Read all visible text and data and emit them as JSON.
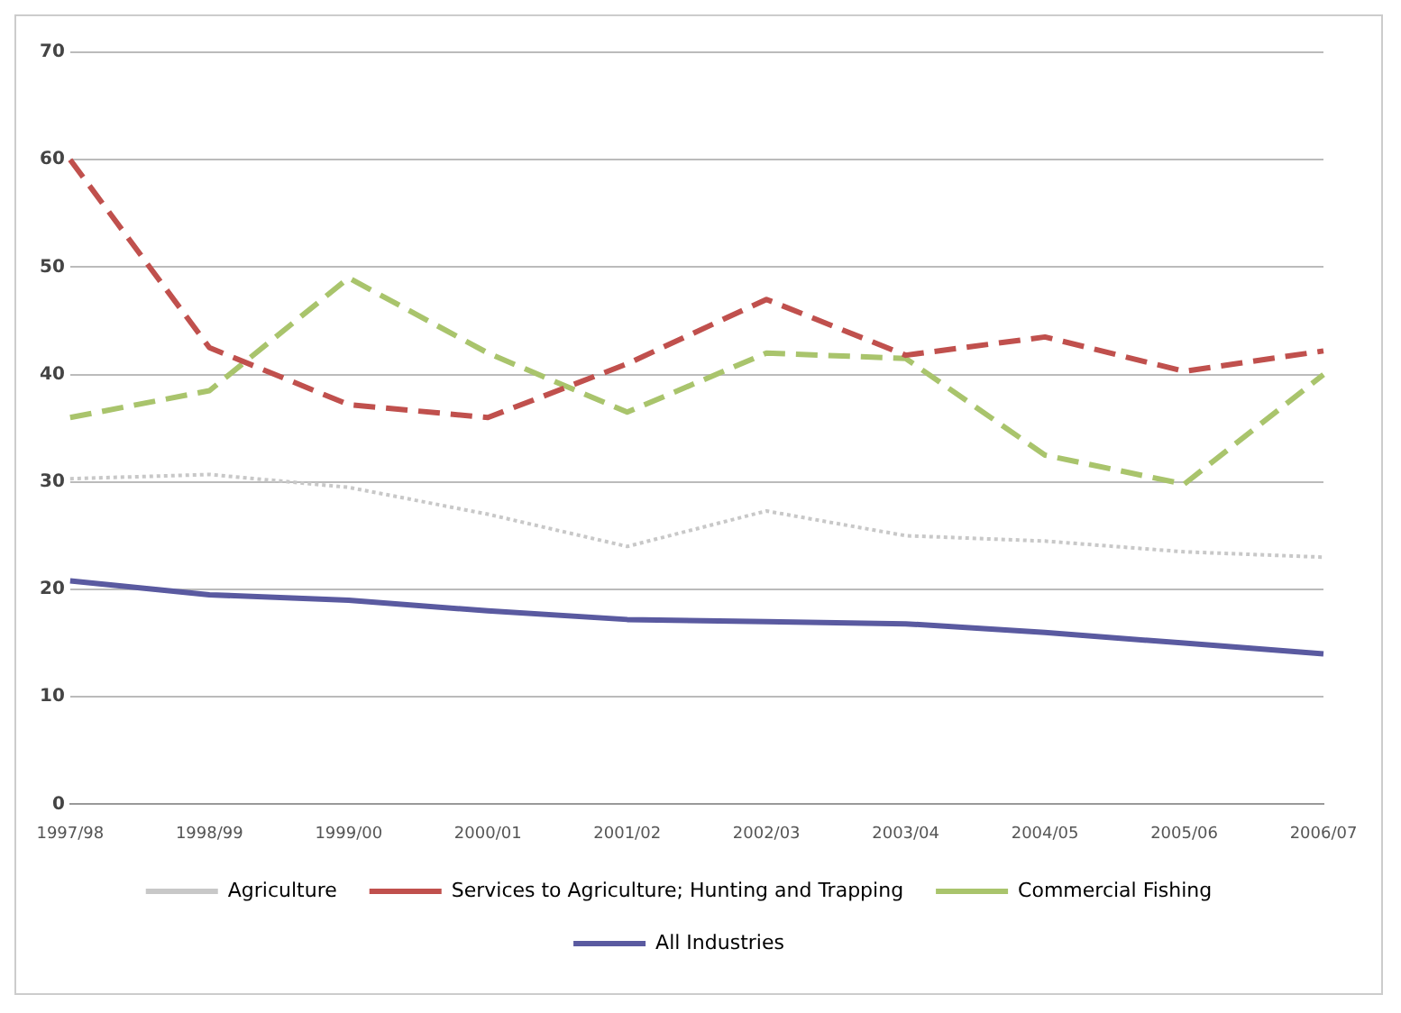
{
  "chart_data": {
    "type": "line",
    "categories": [
      "1997/98",
      "1998/99",
      "1999/00",
      "2000/01",
      "2001/02",
      "2002/03",
      "2003/04",
      "2004/05",
      "2005/06",
      "2006/07"
    ],
    "series": [
      {
        "name": "Agriculture",
        "color": "#c8c8c8",
        "line_style": "dotted",
        "values": [
          30.3,
          30.7,
          29.5,
          27,
          24,
          27.3,
          25,
          24.5,
          23.5,
          23
        ]
      },
      {
        "name": "Services to Agriculture; Hunting and Trapping",
        "color": "#c0504d",
        "line_style": "dashed",
        "values": [
          60,
          42.5,
          37.2,
          36,
          41,
          47,
          41.8,
          43.5,
          40.3,
          42.2
        ]
      },
      {
        "name": "Commercial Fishing",
        "color": "#a9c46c",
        "line_style": "dashed",
        "values": [
          36,
          38.5,
          49,
          42,
          36.5,
          42,
          41.5,
          32.5,
          29.8,
          40
        ]
      },
      {
        "name": "All Industries",
        "color": "#5a5aa0",
        "line_style": "solid",
        "values": [
          20.8,
          19.5,
          19,
          18,
          17.2,
          17,
          16.8,
          16,
          15,
          14
        ]
      }
    ],
    "ylim": [
      0,
      70
    ],
    "yticks": [
      0,
      10,
      20,
      30,
      40,
      50,
      60,
      70
    ],
    "grid": "y",
    "legend": "bottom",
    "marker": "none"
  }
}
